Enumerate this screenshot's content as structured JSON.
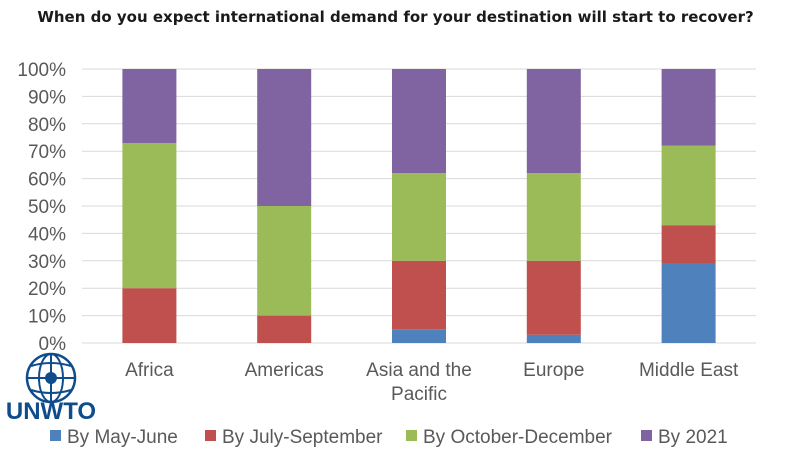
{
  "title": "When do you expect international demand for your destination will start to recover?",
  "logo": {
    "text": "UNWTO"
  },
  "chart_data": {
    "type": "bar",
    "stacked": true,
    "categories": [
      [
        "Africa"
      ],
      [
        "Americas"
      ],
      [
        "Asia and the",
        "Pacific"
      ],
      [
        "Europe"
      ],
      [
        "Middle East"
      ]
    ],
    "series": [
      {
        "name": "By May-June",
        "color": "#4f81bd",
        "values": [
          0,
          0,
          5,
          3,
          29
        ]
      },
      {
        "name": "By July-September",
        "color": "#c0504d",
        "values": [
          20,
          10,
          25,
          27,
          14
        ]
      },
      {
        "name": "By October-December",
        "color": "#9bbb59",
        "values": [
          53,
          40,
          32,
          32,
          29
        ]
      },
      {
        "name": "By 2021",
        "color": "#8064a2",
        "values": [
          27,
          50,
          38,
          38,
          28
        ]
      }
    ],
    "ylim": [
      0,
      100
    ],
    "yticks": [
      "0%",
      "10%",
      "20%",
      "30%",
      "40%",
      "50%",
      "60%",
      "70%",
      "80%",
      "90%",
      "100%"
    ],
    "grid": true,
    "legend": "bottom"
  }
}
